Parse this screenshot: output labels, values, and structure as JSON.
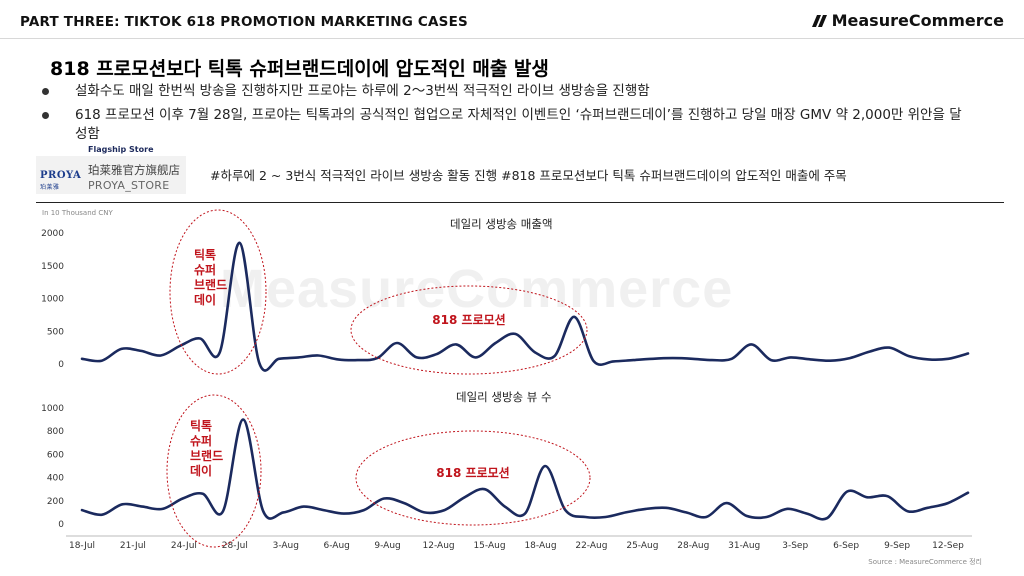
{
  "header": {
    "part_label": "PART THREE: TIKTOK 618 PROMOTION MARKETING CASES",
    "logo_text": "MeasureCommerce",
    "watermark": "MeasureCommerce"
  },
  "slide": {
    "title": "818 프로모션보다 틱톡 슈퍼브랜드데이에 압도적인 매출 발생",
    "bullets": [
      "설화수도 매일 한번씩 방송을 진행하지만 프로야는 하루에 2〜3번씩 적극적인 라이브 생방송을 진행함",
      "618 프로모션 이후 7월 28일, 프로야는 틱톡과의 공식적인 협업으로 자체적인 이벤트인 ‘슈퍼브랜드데이’를 진행하고 당일 매장 GMV 약 2,000만 위안을 달성함"
    ],
    "store_tag": "Flagship Store",
    "store_brand": "PROYA",
    "store_brand_cn": "珀莱雅",
    "store_name": "珀莱雅官方旗舰店",
    "store_id": "PROYA_STORE",
    "hashtag": "#하루에 2 ~ 3번식 적극적인 라이브 생방송 활동 진행 #818 프로모션보다 틱톡 슈퍼브랜드데이의 압도적인 매출에 주목",
    "unit": "In 10 Thousand CNY",
    "source": "Source : MeasureCommerce 정리"
  },
  "chart_data": [
    {
      "type": "line",
      "title": "데일리 생방송 매출액",
      "ylim": [
        0,
        2000
      ],
      "yticks": [
        0,
        500,
        1000,
        1500,
        2000
      ],
      "x_ticks": [
        "18-Jul",
        "21-Jul",
        "24-Jul",
        "28-Jul",
        "3-Aug",
        "6-Aug",
        "9-Aug",
        "12-Aug",
        "15-Aug",
        "18-Aug",
        "22-Aug",
        "25-Aug",
        "28-Aug",
        "31-Aug",
        "3-Sep",
        "6-Sep",
        "9-Sep",
        "12-Sep"
      ],
      "series": [
        {
          "color": "#1b2a5e",
          "values": [
            80,
            50,
            230,
            200,
            130,
            280,
            390,
            180,
            1850,
            20,
            80,
            100,
            130,
            70,
            60,
            90,
            320,
            100,
            150,
            300,
            100,
            320,
            460,
            180,
            120,
            720,
            40,
            40,
            60,
            80,
            90,
            80,
            60,
            80,
            300,
            60,
            100,
            70,
            50,
            90,
            190,
            250,
            120,
            70,
            80,
            160
          ]
        }
      ],
      "annotations": [
        {
          "label": [
            "틱톡",
            "슈퍼",
            "브랜드",
            "데이"
          ]
        },
        {
          "label": [
            "818 프로모션"
          ]
        }
      ]
    },
    {
      "type": "line",
      "title": "데일리 생방송 뷰 수",
      "ylim": [
        0,
        1000
      ],
      "yticks": [
        0,
        200,
        400,
        600,
        800,
        1000
      ],
      "x_ticks": [
        "18-Jul",
        "21-Jul",
        "24-Jul",
        "28-Jul",
        "3-Aug",
        "6-Aug",
        "9-Aug",
        "12-Aug",
        "15-Aug",
        "18-Aug",
        "22-Aug",
        "25-Aug",
        "28-Aug",
        "31-Aug",
        "3-Sep",
        "6-Sep",
        "9-Sep",
        "12-Sep"
      ],
      "series": [
        {
          "color": "#1b2a5e",
          "values": [
            120,
            80,
            170,
            150,
            130,
            220,
            260,
            110,
            900,
            110,
            100,
            150,
            120,
            90,
            120,
            220,
            180,
            100,
            120,
            230,
            300,
            150,
            90,
            500,
            120,
            60,
            60,
            100,
            130,
            140,
            100,
            60,
            180,
            70,
            60,
            130,
            90,
            50,
            280,
            230,
            240,
            110,
            140,
            180,
            270
          ]
        }
      ],
      "annotations": [
        {
          "label": [
            "틱톡",
            "슈퍼",
            "브랜드",
            "데이"
          ]
        },
        {
          "label": [
            "818 프로모션"
          ]
        }
      ]
    }
  ]
}
